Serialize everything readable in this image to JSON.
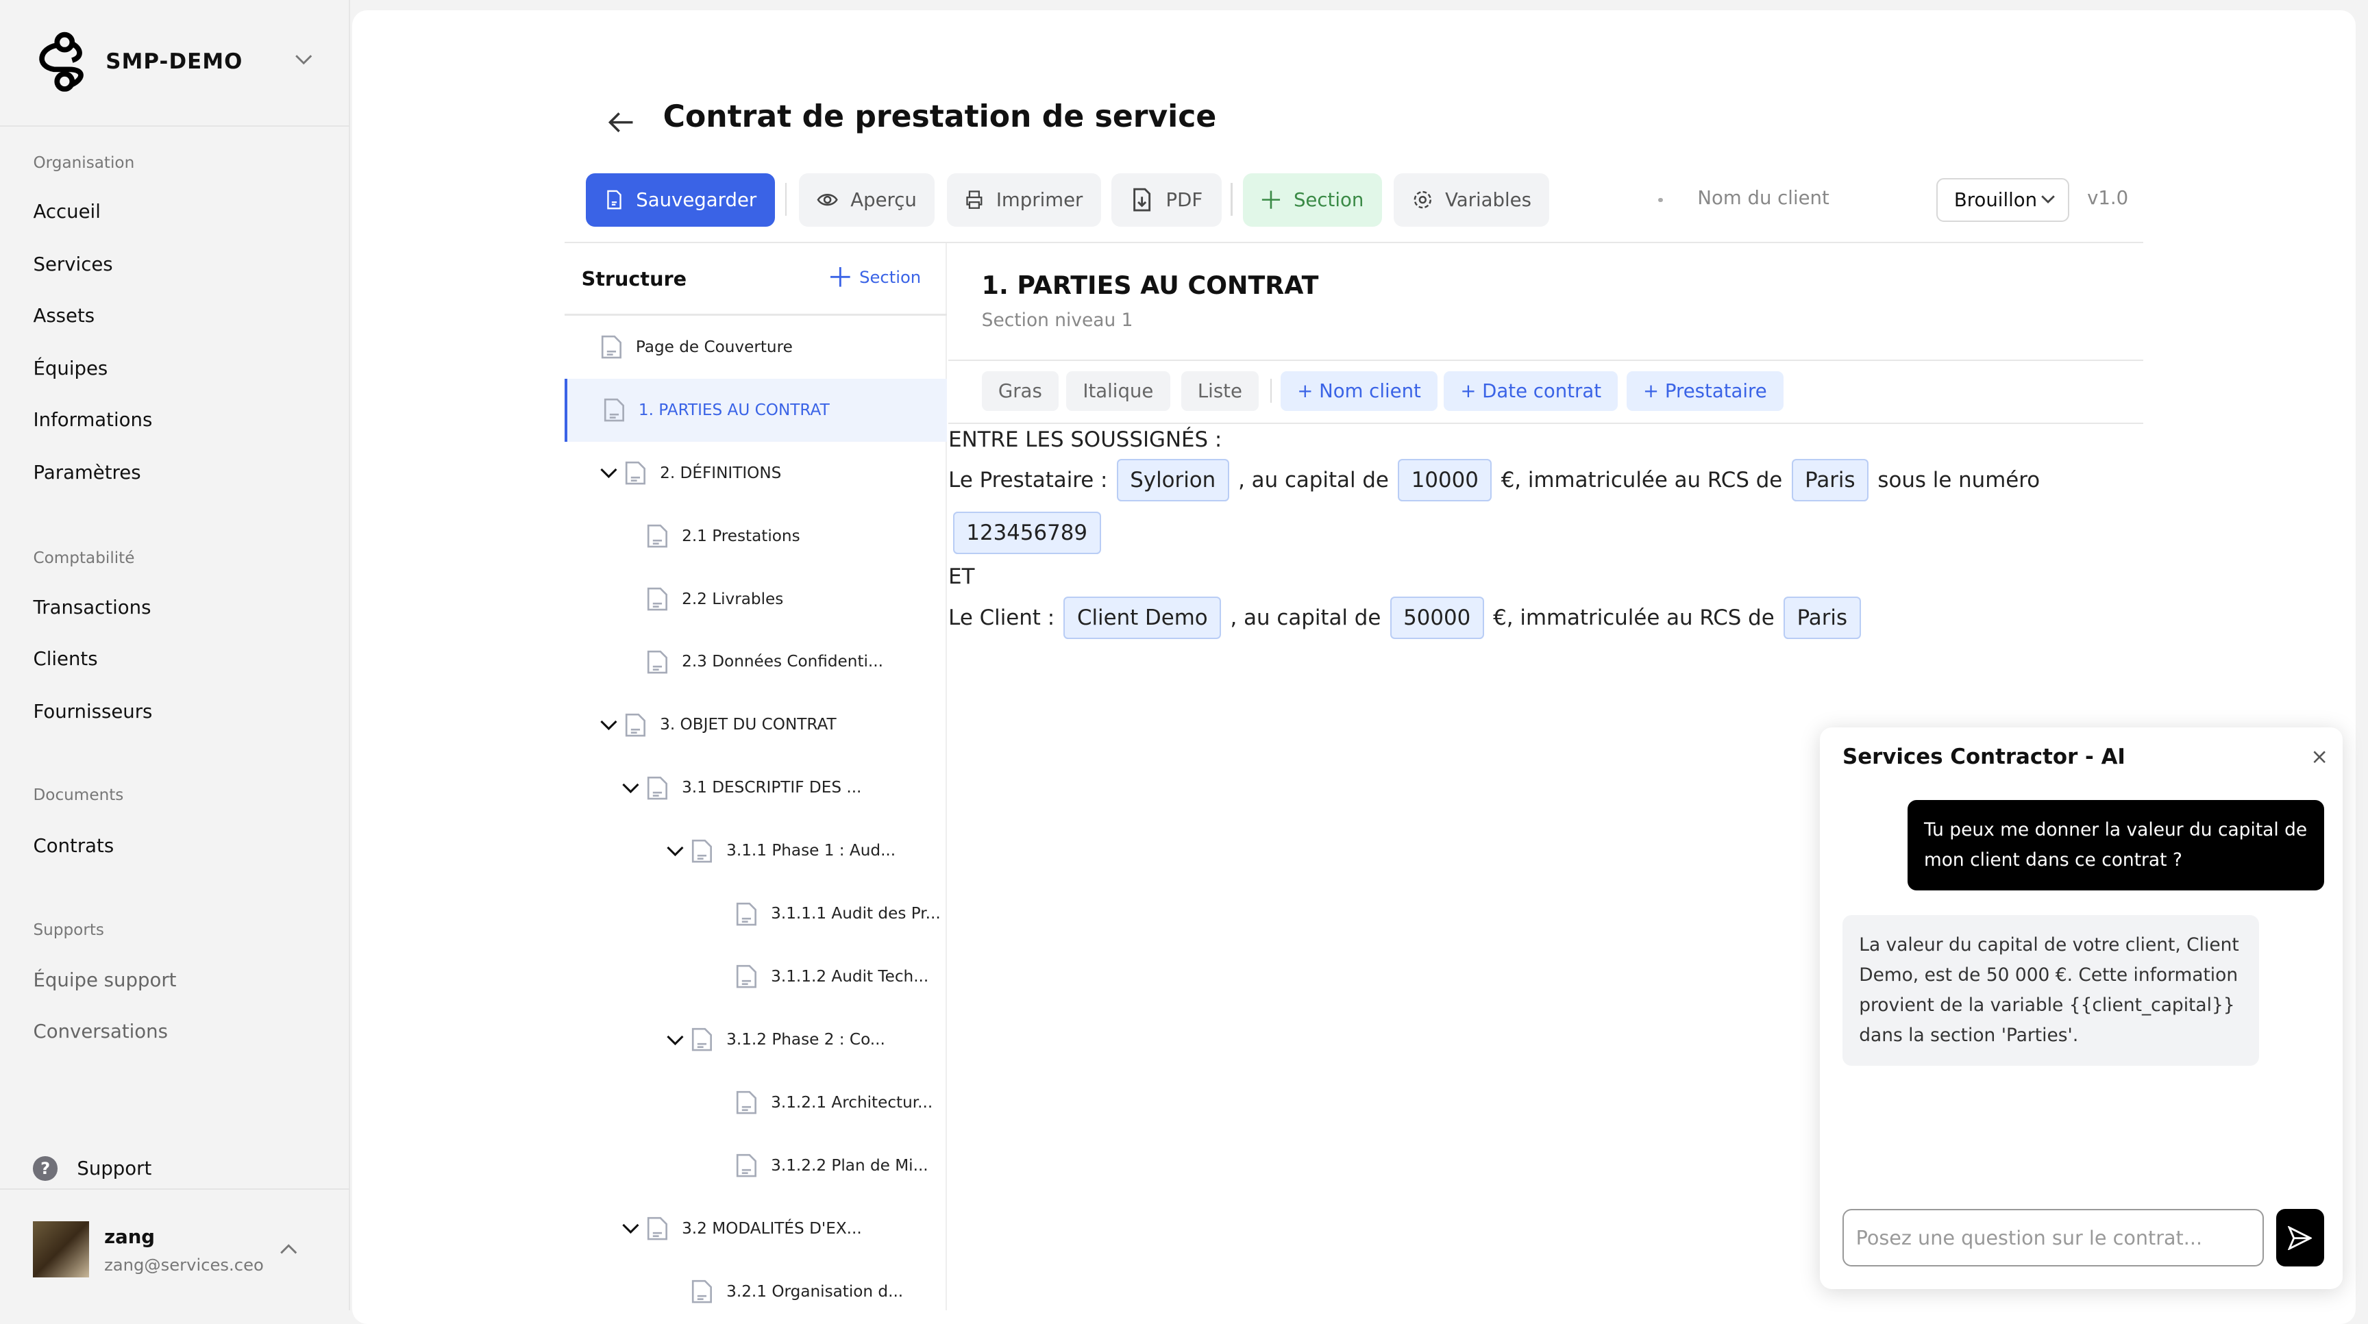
{
  "org": {
    "name": "SMP-DEMO"
  },
  "sidebar": {
    "groups": [
      {
        "label": "Organisation",
        "items": [
          "Accueil",
          "Services",
          "Assets",
          "Équipes",
          "Informations",
          "Paramètres"
        ]
      },
      {
        "label": "Comptabilité",
        "items": [
          "Transactions",
          "Clients",
          "Fournisseurs"
        ]
      },
      {
        "label": "Documents",
        "items": [
          "Contrats"
        ]
      },
      {
        "label": "Supports",
        "items": [
          "Équipe support",
          "Conversations"
        ]
      }
    ],
    "support": "Support",
    "user": {
      "name": "zang",
      "email": "zang@services.ceo"
    }
  },
  "header": {
    "title": "Contrat de prestation de service"
  },
  "toolbar": {
    "save": "Sauvegarder",
    "preview": "Aperçu",
    "print": "Imprimer",
    "pdf": "PDF",
    "section": "Section",
    "variables": "Variables",
    "client_placeholder": "Nom du client",
    "status": "Brouillon",
    "version": "v1.0"
  },
  "colors": {
    "accent": "#3a63e6",
    "section_bg": "#e1f7e8",
    "section_fg": "#3a8a46"
  },
  "structure": {
    "title": "Structure",
    "add": "Section",
    "items": [
      {
        "label": "Page de Couverture",
        "level": 0,
        "chev": false
      },
      {
        "label": "1. PARTIES AU CONTRAT",
        "level": 0,
        "chev": false,
        "active": true
      },
      {
        "label": "2. DÉFINITIONS",
        "level": 1,
        "chev": true
      },
      {
        "label": "2.1 Prestations",
        "level": 2,
        "chev": false
      },
      {
        "label": "2.2 Livrables",
        "level": 2,
        "chev": false
      },
      {
        "label": "2.3 Données Confidenti...",
        "level": 2,
        "chev": false
      },
      {
        "label": "3. OBJET DU CONTRAT",
        "level": 1,
        "chev": true
      },
      {
        "label": "3.1 DESCRIPTIF DES ...",
        "level": 2,
        "chev": true
      },
      {
        "label": "3.1.1 Phase 1 : Aud...",
        "level": 3,
        "chev": true
      },
      {
        "label": "3.1.1.1 Audit des Pr...",
        "level": 4,
        "chev": false
      },
      {
        "label": "3.1.1.2 Audit Tech...",
        "level": 4,
        "chev": false
      },
      {
        "label": "3.1.2 Phase 2 : Co...",
        "level": 3,
        "chev": true
      },
      {
        "label": "3.1.2.1 Architectur...",
        "level": 4,
        "chev": false
      },
      {
        "label": "3.1.2.2 Plan de Mi...",
        "level": 4,
        "chev": false
      },
      {
        "label": "3.2 MODALITÉS D'EX...",
        "level": 2,
        "chev": true
      },
      {
        "label": "3.2.1 Organisation d...",
        "level": 3,
        "chev": false
      }
    ]
  },
  "editor": {
    "heading": "1. PARTIES AU CONTRAT",
    "subtitle": "Section niveau 1",
    "format": [
      "Gras",
      "Italique",
      "Liste"
    ],
    "vars": [
      "+ Nom client",
      "+ Date contrat",
      "+ Prestataire"
    ],
    "l1": "ENTRE LES SOUSSIGNÉS :",
    "p_label": "Le Prestataire :",
    "p_name": "Sylorion",
    "cap": ", au capital de",
    "p_cap": "10000",
    "rcs": "€, immatriculée au RCS de",
    "p_city": "Paris",
    "num": "sous le numéro",
    "p_num": "123456789",
    "et": "ET",
    "c_label": "Le Client :",
    "c_name": "Client Demo",
    "c_cap": "50000",
    "c_city": "Paris"
  },
  "chat": {
    "title": "Services Contractor - AI",
    "close": "×",
    "user_msg": "Tu peux me donner la valeur du capital de mon client dans ce contrat ?",
    "ai_msg": "La valeur du capital de votre client, Client Demo, est de 50 000 €. Cette information provient de la variable {{client_capital}} dans la section 'Parties'.",
    "placeholder": "Posez une question sur le contrat..."
  }
}
